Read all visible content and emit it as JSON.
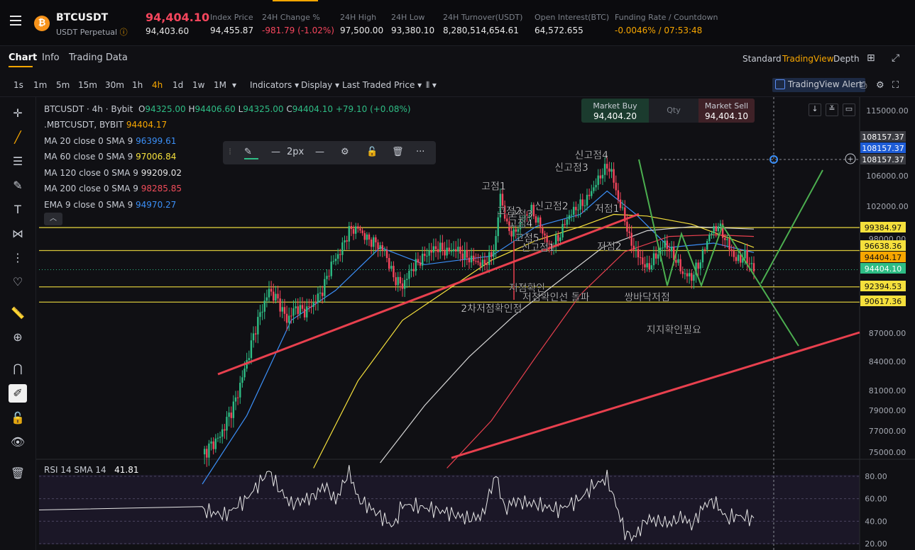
{
  "header": {
    "symbol": "BTCUSDT",
    "subtitle": "USDT Perpetual",
    "last_price": "94,404.10",
    "mark_price": "94,403.60",
    "stats": [
      {
        "label": "Index Price",
        "value": "94,455.87",
        "color": "#eaeaea"
      },
      {
        "label": "24H Change %",
        "value": "-981.79 (-1.02%)",
        "color": "#f6465d"
      },
      {
        "label": "24H High",
        "value": "97,500.00",
        "color": "#eaeaea"
      },
      {
        "label": "24H Low",
        "value": "93,380.10",
        "color": "#eaeaea"
      },
      {
        "label": "24H Turnover(USDT)",
        "value": "8,280,514,654.61",
        "color": "#eaeaea"
      },
      {
        "label": "Open Interest(BTC)",
        "value": "64,572.655",
        "color": "#eaeaea"
      },
      {
        "label": "Funding Rate / Countdown",
        "value": "-0.0046% / 07:53:48",
        "color": "#f7a600"
      }
    ]
  },
  "tabs": {
    "chart": "Chart",
    "info": "Info",
    "trading_data": "Trading Data",
    "standard": "Standard",
    "tradingview": "TradingView",
    "depth": "Depth"
  },
  "toolbar": {
    "timeframes": [
      "1s",
      "1m",
      "5m",
      "15m",
      "30m",
      "1h",
      "4h",
      "1d",
      "1w",
      "1M"
    ],
    "active_timeframe": "4h",
    "indicators": "Indicators ▾",
    "display": "Display ▾",
    "price_type": "Last Traded Price ▾",
    "alert": "TradingView Alert"
  },
  "legend": {
    "symbol_line": "BTCUSDT · 4h · Bybit",
    "ohlc": {
      "o": "94325.00",
      "h": "94406.60",
      "l": "94325.00",
      "c": "94404.10",
      "chg": "+79.10 (+0.08%)"
    },
    "items": [
      {
        "name": ".MBTCUSDT, BYBIT",
        "value": "94404.17",
        "color": "#f7a600"
      },
      {
        "name": "MA 20 close 0 SMA 9",
        "value": "96399.61",
        "color": "#3b8ff7"
      },
      {
        "name": "MA 60 close 0 SMA 9",
        "value": "97006.84",
        "color": "#f5e03c"
      },
      {
        "name": "MA 120 close 0 SMA 9",
        "value": "99209.02",
        "color": "#e3e3e3"
      },
      {
        "name": "MA 200 close 0 SMA 9",
        "value": "98285.85",
        "color": "#f14c5a"
      },
      {
        "name": "EMA 9 close 0 SMA 9",
        "value": "94970.27",
        "color": "#3b8ff7"
      }
    ]
  },
  "drawbar": {
    "width_label": "2px"
  },
  "trade": {
    "buy_label": "Market Buy",
    "buy_price": "94,404.20",
    "qty_label": "Qty",
    "sell_label": "Market Sell",
    "sell_price": "94,404.10"
  },
  "chart_data": {
    "type": "candlestick",
    "price_axis": {
      "ylim": [
        73500,
        116500
      ],
      "ticks": [
        "115000.00",
        "108157.37",
        "108157.37",
        "108157.37",
        "106000.00",
        "102000.00",
        "99384.97",
        "98000.00",
        "96638.36",
        "94404.17",
        "94404.10",
        "92394.53",
        "90617.36",
        "87000.00",
        "84000.00",
        "81000.00",
        "79000.00",
        "77000.00",
        "75000.00"
      ]
    },
    "price_tags": [
      {
        "value": 108157.37,
        "label": "108157.37",
        "color": "#3a3b41"
      },
      {
        "value": 107900,
        "label": "108157.37",
        "color": "#1d5cd6"
      },
      {
        "value": 106900,
        "label": "108157.37",
        "color": "#3a3b41"
      },
      {
        "value": 99384.97,
        "label": "99384.97",
        "color": "#f5e03c"
      },
      {
        "value": 96638.36,
        "label": "96638.36",
        "color": "#f5e03c"
      },
      {
        "value": 95600,
        "label": "94404.17",
        "color": "#f7a600"
      },
      {
        "value": 94404.1,
        "label": "94404.10",
        "color": "#2ebd85"
      },
      {
        "value": 92394.53,
        "label": "92394.53",
        "color": "#f5e03c"
      },
      {
        "value": 90617.36,
        "label": "90617.36",
        "color": "#f5e03c"
      }
    ],
    "horizontal_levels": [
      99384.97,
      96638.36,
      92394.53,
      90617.36
    ],
    "close_path": [
      [
        0,
        74800
      ],
      [
        8,
        76500
      ],
      [
        15,
        80000
      ],
      [
        20,
        84000
      ],
      [
        25,
        88500
      ],
      [
        30,
        92000
      ],
      [
        34,
        90800
      ],
      [
        38,
        88500
      ],
      [
        42,
        90000
      ],
      [
        46,
        89500
      ],
      [
        50,
        90500
      ],
      [
        54,
        92000
      ],
      [
        58,
        95000
      ],
      [
        62,
        96500
      ],
      [
        66,
        99000
      ],
      [
        70,
        99300
      ],
      [
        74,
        98000
      ],
      [
        78,
        97500
      ],
      [
        82,
        96500
      ],
      [
        86,
        93500
      ],
      [
        90,
        92500
      ],
      [
        94,
        94500
      ],
      [
        98,
        95500
      ],
      [
        102,
        96500
      ],
      [
        106,
        97000
      ],
      [
        110,
        96500
      ],
      [
        114,
        96800
      ],
      [
        118,
        96000
      ],
      [
        122,
        95500
      ],
      [
        126,
        95000
      ],
      [
        130,
        96000
      ],
      [
        132,
        98000
      ],
      [
        134,
        103500
      ],
      [
        137,
        99500
      ],
      [
        140,
        98500
      ],
      [
        144,
        100500
      ],
      [
        148,
        101500
      ],
      [
        152,
        99500
      ],
      [
        156,
        97000
      ],
      [
        160,
        98000
      ],
      [
        164,
        100500
      ],
      [
        168,
        101800
      ],
      [
        172,
        102500
      ],
      [
        176,
        104500
      ],
      [
        180,
        106500
      ],
      [
        182,
        107300
      ],
      [
        184,
        106500
      ],
      [
        186,
        104000
      ],
      [
        188,
        102000
      ],
      [
        190,
        100500
      ],
      [
        192,
        98000
      ],
      [
        196,
        96000
      ],
      [
        200,
        94500
      ],
      [
        204,
        96000
      ],
      [
        208,
        97500
      ],
      [
        212,
        96000
      ],
      [
        216,
        94000
      ],
      [
        220,
        93500
      ],
      [
        224,
        95500
      ],
      [
        228,
        98500
      ],
      [
        232,
        99700
      ],
      [
        236,
        97500
      ],
      [
        240,
        95500
      ],
      [
        244,
        96000
      ],
      [
        248,
        94404
      ]
    ],
    "moving_averages": [
      {
        "name": "MA 20",
        "color": "#3b8ff7",
        "points": [
          [
            0,
            72000
          ],
          [
            20,
            78500
          ],
          [
            40,
            88500
          ],
          [
            60,
            92000
          ],
          [
            80,
            97000
          ],
          [
            100,
            95000
          ],
          [
            130,
            96000
          ],
          [
            150,
            99500
          ],
          [
            170,
            101000
          ],
          [
            182,
            104000
          ],
          [
            195,
            101000
          ],
          [
            210,
            97000
          ],
          [
            230,
            97500
          ],
          [
            248,
            96400
          ]
        ]
      },
      {
        "name": "MA 60",
        "color": "#f5e03c",
        "points": [
          [
            50,
            73500
          ],
          [
            70,
            82000
          ],
          [
            90,
            88500
          ],
          [
            110,
            92000
          ],
          [
            130,
            95500
          ],
          [
            150,
            97800
          ],
          [
            170,
            99500
          ],
          [
            185,
            101000
          ],
          [
            200,
            100800
          ],
          [
            220,
            99800
          ],
          [
            248,
            97000
          ]
        ]
      },
      {
        "name": "MA 120",
        "color": "#d6d6d6",
        "points": [
          [
            80,
            74000
          ],
          [
            100,
            79500
          ],
          [
            120,
            84500
          ],
          [
            140,
            89000
          ],
          [
            160,
            93000
          ],
          [
            180,
            97000
          ],
          [
            200,
            99000
          ],
          [
            220,
            99500
          ],
          [
            248,
            99200
          ]
        ]
      },
      {
        "name": "MA 200",
        "color": "#e8404e",
        "points": [
          [
            110,
            73500
          ],
          [
            130,
            78000
          ],
          [
            150,
            84500
          ],
          [
            170,
            91500
          ],
          [
            190,
            96500
          ],
          [
            210,
            98300
          ],
          [
            230,
            98500
          ],
          [
            248,
            98300
          ]
        ]
      }
    ],
    "rsi": {
      "legend": "RSI 14 SMA 14",
      "value": "41.81",
      "ticks": [
        "80.00",
        "60.00",
        "40.00",
        "20.00"
      ],
      "ylim": [
        18,
        90
      ],
      "levels": [
        80,
        60,
        40,
        20
      ],
      "series": [
        [
          0,
          50
        ],
        [
          10,
          45
        ],
        [
          20,
          60
        ],
        [
          30,
          85
        ],
        [
          34,
          70
        ],
        [
          40,
          55
        ],
        [
          50,
          62
        ],
        [
          55,
          72
        ],
        [
          60,
          58
        ],
        [
          66,
          85
        ],
        [
          70,
          60
        ],
        [
          80,
          45
        ],
        [
          86,
          35
        ],
        [
          90,
          55
        ],
        [
          100,
          52
        ],
        [
          110,
          48
        ],
        [
          120,
          42
        ],
        [
          126,
          45
        ],
        [
          132,
          82
        ],
        [
          136,
          50
        ],
        [
          140,
          58
        ],
        [
          150,
          55
        ],
        [
          160,
          50
        ],
        [
          170,
          60
        ],
        [
          176,
          72
        ],
        [
          182,
          78
        ],
        [
          186,
          55
        ],
        [
          190,
          30
        ],
        [
          194,
          25
        ],
        [
          200,
          42
        ],
        [
          210,
          38
        ],
        [
          216,
          44
        ],
        [
          220,
          36
        ],
        [
          226,
          55
        ],
        [
          230,
          58
        ],
        [
          236,
          42
        ],
        [
          240,
          45
        ],
        [
          248,
          42
        ]
      ]
    },
    "annotations": [
      {
        "text": "고점1",
        "x": 131,
        "y": 104200,
        "color": "#ffffff"
      },
      {
        "text": "고점2",
        "x": 138,
        "y": 101000,
        "color": "#ffffff"
      },
      {
        "text": "고점3",
        "x": 143,
        "y": 100600,
        "color": "#ffffff"
      },
      {
        "text": "고점4",
        "x": 143,
        "y": 99500,
        "color": "#ffffff"
      },
      {
        "text": "고점5",
        "x": 146,
        "y": 97700,
        "color": "#ffffff"
      },
      {
        "text": "신고점1",
        "x": 151,
        "y": 96600,
        "color": "#ffffff"
      },
      {
        "text": "신고점2",
        "x": 157,
        "y": 101600,
        "color": "#ffffff"
      },
      {
        "text": "신고점3",
        "x": 166,
        "y": 106700,
        "color": "#ffffff"
      },
      {
        "text": "신고점4",
        "x": 175,
        "y": 108400,
        "color": "#ffffff"
      },
      {
        "text": "저점1",
        "x": 182,
        "y": 101300,
        "color": "#ffffff"
      },
      {
        "text": "저점2",
        "x": 183,
        "y": 96700,
        "color": "#ffffff"
      },
      {
        "text": "저점확인",
        "x": 146,
        "y": 91900,
        "color": "#ffffff"
      },
      {
        "text": "2차저점확인점",
        "x": 130,
        "y": 89500,
        "color": "#ffffff"
      },
      {
        "text": "저점확인선 돌파",
        "x": 159,
        "y": 90800,
        "color": "#ffffff"
      },
      {
        "text": "쌍바닥저점",
        "x": 200,
        "y": 90800,
        "color": "#ffffff"
      },
      {
        "text": "지지확인필요",
        "x": 212,
        "y": 87000,
        "color": "#ffffff"
      }
    ]
  }
}
